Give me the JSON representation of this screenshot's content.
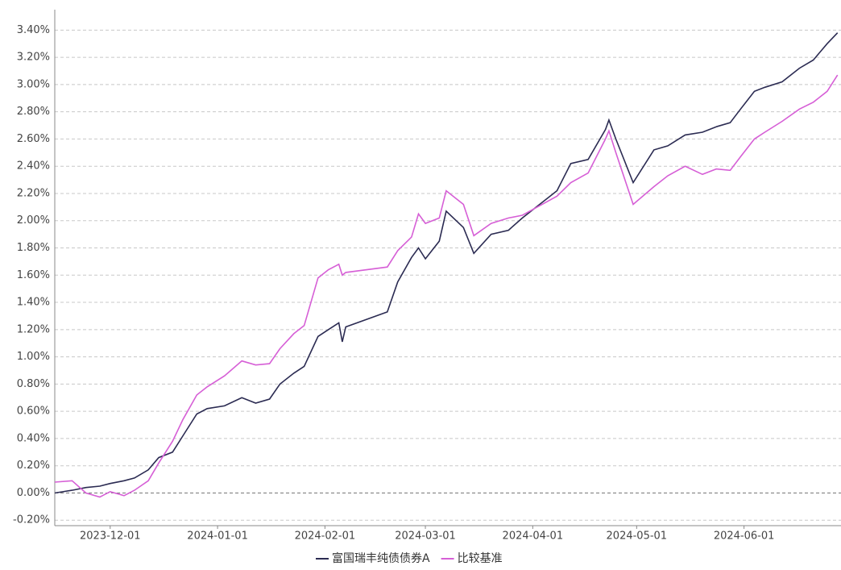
{
  "chart_data": {
    "type": "line",
    "x": [
      "2023-11-15",
      "2023-11-20",
      "2023-11-24",
      "2023-11-28",
      "2023-12-01",
      "2023-12-05",
      "2023-12-08",
      "2023-12-12",
      "2023-12-15",
      "2023-12-19",
      "2023-12-22",
      "2023-12-26",
      "2023-12-29",
      "2024-01-03",
      "2024-01-08",
      "2024-01-12",
      "2024-01-16",
      "2024-01-19",
      "2024-01-23",
      "2024-01-26",
      "2024-01-30",
      "2024-02-02",
      "2024-02-05",
      "2024-02-06",
      "2024-02-07",
      "2024-02-19",
      "2024-02-22",
      "2024-02-26",
      "2024-02-28",
      "2024-03-01",
      "2024-03-05",
      "2024-03-07",
      "2024-03-12",
      "2024-03-15",
      "2024-03-20",
      "2024-03-25",
      "2024-03-29",
      "2024-04-03",
      "2024-04-08",
      "2024-04-12",
      "2024-04-17",
      "2024-04-22",
      "2024-04-23",
      "2024-04-25",
      "2024-04-30",
      "2024-05-06",
      "2024-05-10",
      "2024-05-15",
      "2024-05-20",
      "2024-05-24",
      "2024-05-28",
      "2024-05-31",
      "2024-06-04",
      "2024-06-07",
      "2024-06-12",
      "2024-06-17",
      "2024-06-21",
      "2024-06-25",
      "2024-06-28"
    ],
    "series": [
      {
        "name": "富国瑞丰纯债债券A",
        "color": "#2b2b52",
        "values": [
          0.0,
          0.02,
          0.04,
          0.05,
          0.07,
          0.09,
          0.11,
          0.17,
          0.26,
          0.3,
          0.42,
          0.58,
          0.62,
          0.64,
          0.7,
          0.66,
          0.69,
          0.8,
          0.88,
          0.93,
          1.15,
          1.2,
          1.25,
          1.11,
          1.22,
          1.33,
          1.55,
          1.73,
          1.8,
          1.72,
          1.85,
          2.07,
          1.95,
          1.76,
          1.9,
          1.93,
          2.02,
          2.12,
          2.22,
          2.42,
          2.45,
          2.67,
          2.74,
          2.6,
          2.28,
          2.52,
          2.55,
          2.63,
          2.65,
          2.69,
          2.72,
          2.82,
          2.95,
          2.98,
          3.02,
          3.12,
          3.18,
          3.3,
          3.38
        ]
      },
      {
        "name": "比较基准",
        "color": "#d65fd6",
        "values": [
          0.08,
          0.09,
          0.0,
          -0.03,
          0.01,
          -0.02,
          0.02,
          0.09,
          0.22,
          0.38,
          0.54,
          0.72,
          0.78,
          0.86,
          0.97,
          0.94,
          0.95,
          1.06,
          1.17,
          1.23,
          1.58,
          1.64,
          1.68,
          1.6,
          1.62,
          1.66,
          1.78,
          1.88,
          2.05,
          1.98,
          2.02,
          2.22,
          2.12,
          1.89,
          1.98,
          2.02,
          2.04,
          2.11,
          2.18,
          2.28,
          2.35,
          2.6,
          2.66,
          2.5,
          2.12,
          2.25,
          2.33,
          2.4,
          2.34,
          2.38,
          2.37,
          2.47,
          2.6,
          2.65,
          2.73,
          2.82,
          2.87,
          2.95,
          3.07
        ]
      }
    ],
    "xlim": [
      "2023-11-15",
      "2024-06-29"
    ],
    "xticks": [
      "2023-12-01",
      "2024-01-01",
      "2024-02-01",
      "2024-03-01",
      "2024-04-01",
      "2024-05-01",
      "2024-06-01"
    ],
    "ylim": [
      -0.24,
      3.55
    ],
    "yticks": [
      {
        "value": -0.2,
        "label": "-0.20%"
      },
      {
        "value": 0,
        "label": "0.00%"
      },
      {
        "value": 0.2,
        "label": "0.20%"
      },
      {
        "value": 0.4,
        "label": "0.40%"
      },
      {
        "value": 0.6,
        "label": "0.60%"
      },
      {
        "value": 0.8,
        "label": "0.80%"
      },
      {
        "value": 1,
        "label": "1.00%"
      },
      {
        "value": 1.2,
        "label": "1.20%"
      },
      {
        "value": 1.4,
        "label": "1.40%"
      },
      {
        "value": 1.6,
        "label": "1.60%"
      },
      {
        "value": 1.8,
        "label": "1.80%"
      },
      {
        "value": 2,
        "label": "2.00%"
      },
      {
        "value": 2.2,
        "label": "2.20%"
      },
      {
        "value": 2.4,
        "label": "2.40%"
      },
      {
        "value": 2.6,
        "label": "2.60%"
      },
      {
        "value": 2.8,
        "label": "2.80%"
      },
      {
        "value": 3,
        "label": "3.00%"
      },
      {
        "value": 3.2,
        "label": "3.20%"
      },
      {
        "value": 3.4,
        "label": "3.40%"
      }
    ],
    "grid": true,
    "legend": "bottom"
  }
}
